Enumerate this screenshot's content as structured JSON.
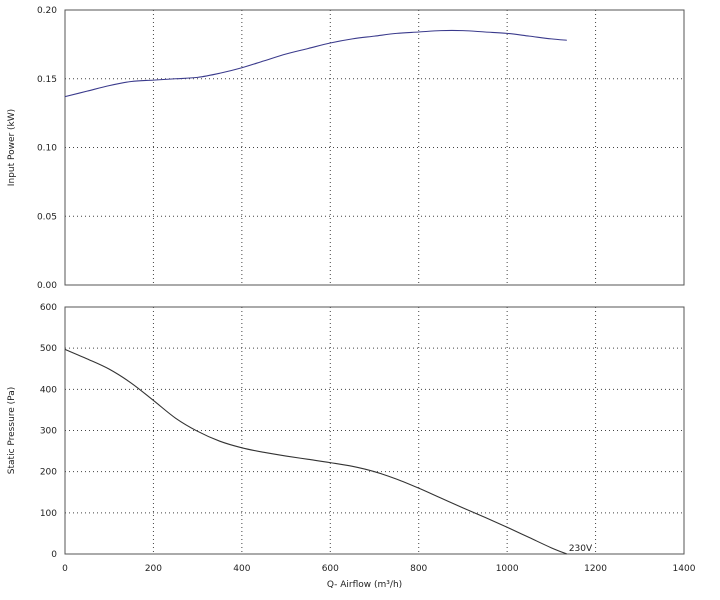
{
  "chart_data": [
    {
      "type": "line",
      "ylabel": "Input Power (kW)",
      "xlim": [
        0,
        1400
      ],
      "ylim": [
        0,
        0.2
      ],
      "x_ticks": [
        "0",
        "200",
        "400",
        "600",
        "800",
        "1000",
        "1200",
        "1400"
      ],
      "y_ticks": [
        "0.00",
        "0.05",
        "0.10",
        "0.15",
        "0.20"
      ],
      "grid": true,
      "color": "#3a3a8c",
      "series": [
        {
          "x": [
            0,
            50,
            100,
            150,
            200,
            250,
            300,
            350,
            400,
            450,
            500,
            550,
            600,
            650,
            700,
            750,
            800,
            850,
            900,
            950,
            1000,
            1050,
            1100,
            1135
          ],
          "y": [
            0.137,
            0.141,
            0.145,
            0.148,
            0.149,
            0.15,
            0.151,
            0.154,
            0.158,
            0.163,
            0.168,
            0.172,
            0.176,
            0.179,
            0.181,
            0.183,
            0.184,
            0.185,
            0.185,
            0.184,
            0.183,
            0.181,
            0.179,
            0.178
          ]
        }
      ]
    },
    {
      "type": "line",
      "xlabel": "Q- Airflow (m³/h)",
      "ylabel": "Static Pressure (Pa)",
      "xlim": [
        0,
        1400
      ],
      "ylim": [
        0,
        600
      ],
      "x_ticks": [
        "0",
        "200",
        "400",
        "600",
        "800",
        "1000",
        "1200",
        "1400"
      ],
      "y_ticks": [
        "0",
        "100",
        "200",
        "300",
        "400",
        "500",
        "600"
      ],
      "grid": true,
      "color": "#333333",
      "series": [
        {
          "name": "230V",
          "x": [
            0,
            50,
            100,
            150,
            200,
            250,
            300,
            350,
            400,
            450,
            500,
            550,
            600,
            650,
            700,
            750,
            800,
            850,
            900,
            950,
            1000,
            1050,
            1100,
            1135
          ],
          "y": [
            497,
            474,
            449,
            415,
            373,
            330,
            298,
            274,
            258,
            247,
            238,
            230,
            222,
            213,
            200,
            182,
            160,
            136,
            112,
            89,
            65,
            40,
            15,
            0
          ]
        }
      ]
    }
  ]
}
